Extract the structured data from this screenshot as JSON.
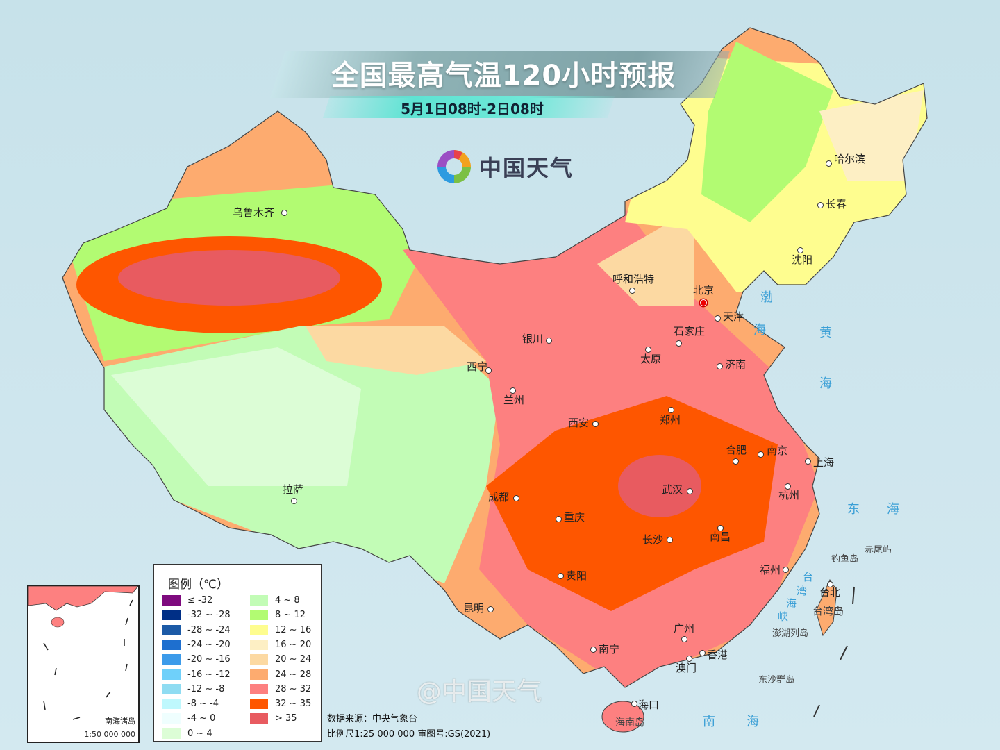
{
  "header": {
    "title": "全国最高气温120小时预报",
    "subtitle": "5月1日08时-2日08时",
    "logo_text": "中国天气"
  },
  "cities": [
    {
      "name": "乌鲁木齐"
    },
    {
      "name": "哈尔滨"
    },
    {
      "name": "长春"
    },
    {
      "name": "沈阳"
    },
    {
      "name": "呼和浩特"
    },
    {
      "name": "北京"
    },
    {
      "name": "天津"
    },
    {
      "name": "石家庄"
    },
    {
      "name": "太原"
    },
    {
      "name": "济南"
    },
    {
      "name": "银川"
    },
    {
      "name": "西宁"
    },
    {
      "name": "兰州"
    },
    {
      "name": "西安"
    },
    {
      "name": "郑州"
    },
    {
      "name": "合肥"
    },
    {
      "name": "南京"
    },
    {
      "name": "上海"
    },
    {
      "name": "杭州"
    },
    {
      "name": "武汉"
    },
    {
      "name": "成都"
    },
    {
      "name": "重庆"
    },
    {
      "name": "长沙"
    },
    {
      "name": "南昌"
    },
    {
      "name": "拉萨"
    },
    {
      "name": "贵阳"
    },
    {
      "name": "福州"
    },
    {
      "name": "台北"
    },
    {
      "name": "昆明"
    },
    {
      "name": "广州"
    },
    {
      "name": "南宁"
    },
    {
      "name": "香港"
    },
    {
      "name": "澳门"
    },
    {
      "name": "海口"
    }
  ],
  "seas": {
    "bohai_1": "渤",
    "bohai_2": "海",
    "huanghai_1": "黄",
    "huanghai_2": "海",
    "donghai_1": "东",
    "donghai_2": "海",
    "nanhai_1": "南",
    "nanhai_2": "海",
    "strait_1": "台",
    "strait_2": "湾",
    "strait_3": "海",
    "strait_4": "峡"
  },
  "islands": {
    "taiwan": "台湾岛",
    "diaoyu": "钓鱼岛",
    "chiwei": "赤尾屿",
    "penghu": "澎湖列岛",
    "dongsha": "东沙群岛",
    "hainan": "海南岛"
  },
  "legend": {
    "title": "图例（℃）",
    "items": [
      {
        "label": "≤ -32",
        "color": "#7e0a7e"
      },
      {
        "label": "-32 ~ -28",
        "color": "#002f86"
      },
      {
        "label": "-28 ~ -24",
        "color": "#1c5aa6"
      },
      {
        "label": "-24 ~ -20",
        "color": "#1e6fcf"
      },
      {
        "label": "-20 ~ -16",
        "color": "#3c9bea"
      },
      {
        "label": "-16 ~ -12",
        "color": "#6fd0fa"
      },
      {
        "label": "-12 ~ -8",
        "color": "#8fdcf2"
      },
      {
        "label": "-8 ~ -4",
        "color": "#bff8fd"
      },
      {
        "label": "-4 ~ 0",
        "color": "#effefe"
      },
      {
        "label": "0 ~ 4",
        "color": "#dcfdd6"
      },
      {
        "label": "4 ~ 8",
        "color": "#c2fcb6"
      },
      {
        "label": "8 ~ 12",
        "color": "#b2fb72"
      },
      {
        "label": "12 ~ 16",
        "color": "#fefd8f"
      },
      {
        "label": "16 ~ 20",
        "color": "#fdefc4"
      },
      {
        "label": "20 ~ 24",
        "color": "#fcd9a2"
      },
      {
        "label": "24 ~ 28",
        "color": "#fdab6f"
      },
      {
        "label": "28 ~ 32",
        "color": "#fd8080"
      },
      {
        "label": "32 ~ 35",
        "color": "#fe5600"
      },
      {
        "label": "> 35",
        "color": "#e85b60"
      }
    ]
  },
  "inset": {
    "name": "南海诸岛",
    "scale": "1:50 000 000"
  },
  "credits": {
    "source": "数据来源：中央气象台",
    "scale": "比例尺1:25 000 000",
    "approval": "审图号:GS(2021)"
  },
  "watermark": "@中国天气"
}
